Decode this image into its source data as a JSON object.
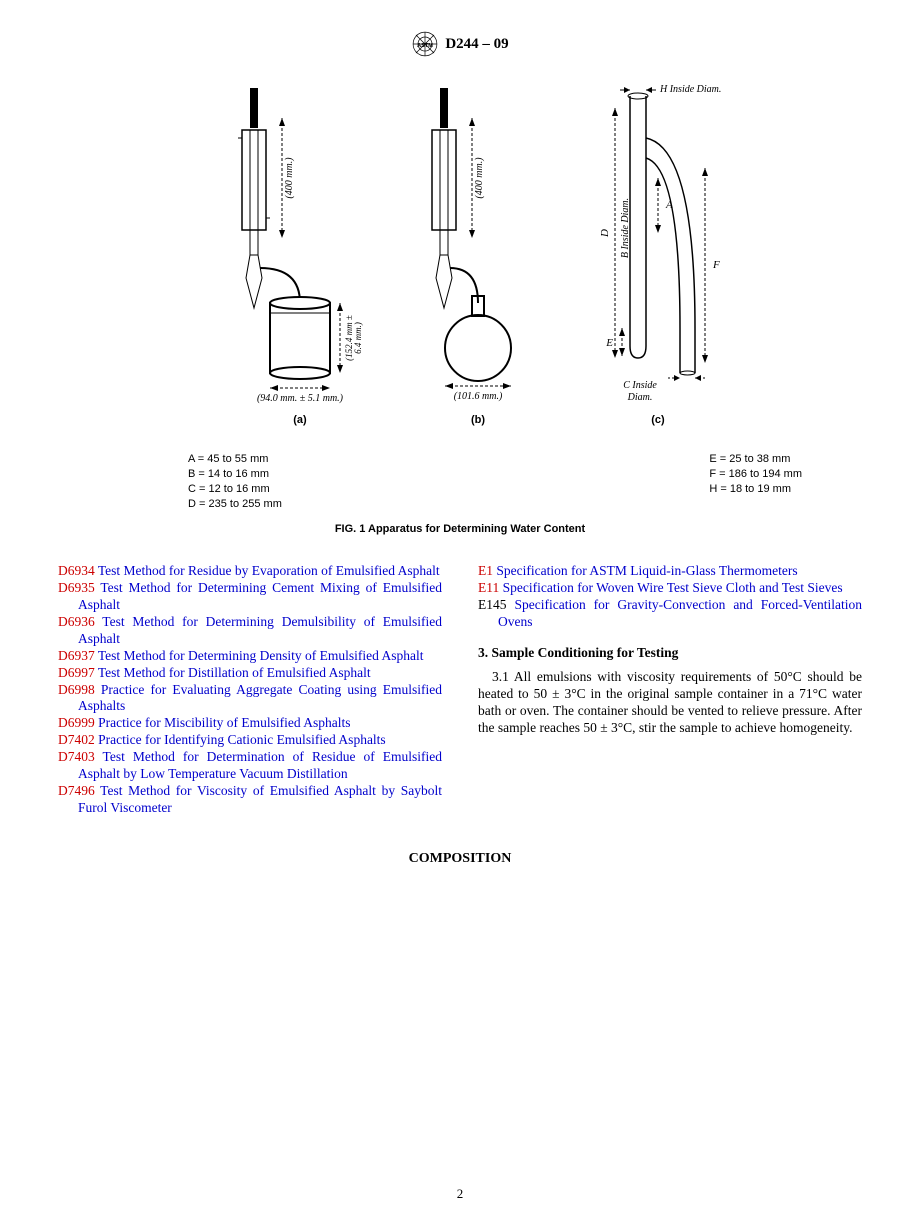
{
  "header": {
    "standard_code": "D244 – 09"
  },
  "figure": {
    "caption": "FIG. 1  Apparatus for Determining Water Content",
    "subfig_labels": {
      "a": "(a)",
      "b": "(b)",
      "c": "(c)"
    },
    "dim_labels": {
      "a_height": "(400 mm.)",
      "a_can_h": "(152.4 mm ±\n6.4 mm.)",
      "a_can_w": "(94.0 mm. ± 5.1 mm.)",
      "b_height": "(400 mm.)",
      "b_flask_w": "(101.6 mm.)",
      "c_h_inside": "H Inside Diam.",
      "c_b_inside": "B Inside Diam.",
      "c_c_inside": "C Inside\nDiam.",
      "c_D": "D",
      "c_A": "A",
      "c_E": "E",
      "c_F": "F"
    },
    "legend_left": [
      "A = 45 to 55 mm",
      "B = 14 to 16 mm",
      "C = 12 to 16 mm",
      "D = 235 to 255 mm"
    ],
    "legend_right": [
      "E = 25 to 38 mm",
      "F = 186 to 194 mm",
      "H = 18 to 19 mm"
    ]
  },
  "refs_left": [
    {
      "code": "D6934",
      "title": "Test Method for Residue by Evaporation of Emulsified Asphalt",
      "justify": true
    },
    {
      "code": "D6935",
      "title": "Test Method for Determining Cement Mixing of Emulsified Asphalt",
      "justify": true
    },
    {
      "code": "D6936",
      "title": "Test Method for Determining Demulsibility of Emulsified Asphalt",
      "justify": true
    },
    {
      "code": "D6937",
      "title": "Test Method for Determining Density of Emulsified Asphalt",
      "justify": true
    },
    {
      "code": "D6997",
      "title": "Test Method for Distillation of Emulsified Asphalt",
      "justify": false
    },
    {
      "code": "D6998",
      "title": "Practice for Evaluating Aggregate Coating using Emulsified Asphalts",
      "justify": true
    },
    {
      "code": "D6999",
      "title": "Practice for Miscibility of Emulsified Asphalts",
      "justify": false
    },
    {
      "code": "D7402",
      "title": "Practice for Identifying Cationic Emulsified Asphalts",
      "justify": false
    },
    {
      "code": "D7403",
      "title": "Test Method for Determination of Residue of Emulsified Asphalt by Low Temperature Vacuum Distillation",
      "justify": true
    },
    {
      "code": "D7496",
      "title": "Test Method for Viscosity of Emulsified Asphalt by Saybolt Furol Viscometer",
      "justify": true
    }
  ],
  "refs_right": [
    {
      "code": "E1",
      "title": "Specification for ASTM Liquid-in-Glass Thermometers",
      "justify": false
    },
    {
      "code": "E11",
      "title": "Specification for Woven Wire Test Sieve Cloth and Test Sieves",
      "justify": true
    },
    {
      "code": "E145",
      "code_red": false,
      "title": "Specification for Gravity-Convection and Forced-Ventilation Ovens",
      "justify": true
    }
  ],
  "section3": {
    "heading": "3. Sample Conditioning for Testing",
    "para": "3.1 All emulsions with viscosity requirements of 50°C should be heated to 50 ± 3°C in the original sample container in a 71°C water bath or oven. The container should be vented to relieve pressure. After the sample reaches 50 ± 3°C, stir the sample to achieve homogeneity."
  },
  "composition_heading": "COMPOSITION",
  "page_number": "2",
  "colors": {
    "code_red": "#cc0000",
    "link_blue": "#0000cc",
    "text": "#000000",
    "bg": "#ffffff"
  },
  "fonts": {
    "body": "Times New Roman",
    "sans": "Arial",
    "body_size_pt": 10,
    "caption_size_pt": 8
  }
}
